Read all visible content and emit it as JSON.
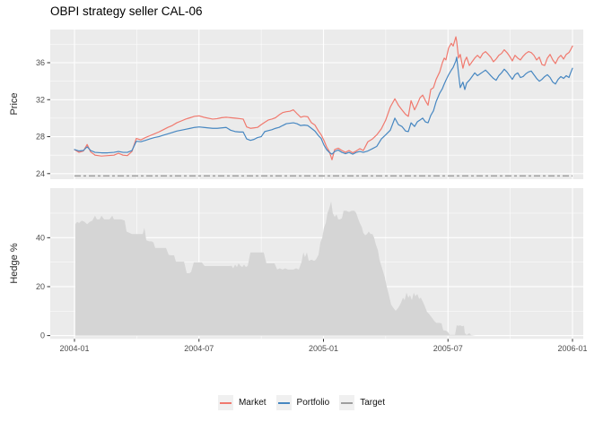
{
  "header": {
    "title": "OBPI strategy seller CAL-06"
  },
  "colors": {
    "market": "#F0796E",
    "portfolio": "#4787C1",
    "target": "#9E9E9E",
    "panel_bg": "#EBEBEB",
    "grid": "#FFFFFF",
    "hedge_fill": "#D5D5D5",
    "tick_text": "#4D4D4D",
    "axis_tick": "#333333"
  },
  "legend": {
    "items": [
      {
        "label": "Market",
        "color": "#F0796E"
      },
      {
        "label": "Portfolio",
        "color": "#4787C1"
      },
      {
        "label": "Target",
        "color": "#9E9E9E"
      }
    ]
  },
  "chart_data": {
    "type": "line",
    "title": "OBPI strategy seller CAL-06",
    "x_unit": "months since 2004-01",
    "grid": true,
    "legend_position": "bottom",
    "x_axis": {
      "ticks": [
        {
          "t": 0,
          "label": "2004-01"
        },
        {
          "t": 6,
          "label": "2004-07"
        },
        {
          "t": 12,
          "label": "2005-01"
        },
        {
          "t": 18,
          "label": "2005-07"
        },
        {
          "t": 24,
          "label": "2006-01"
        }
      ],
      "minor_ticks": [
        3,
        9,
        15,
        21
      ],
      "range": [
        -1.17,
        24.52
      ]
    },
    "panels": [
      {
        "name": "price",
        "ylabel": "Price",
        "type": "line",
        "ylim": [
          23.4,
          39.6
        ],
        "major_ticks": [
          {
            "v": 24,
            "label": "24"
          },
          {
            "v": 28,
            "label": "28"
          },
          {
            "v": 32,
            "label": "32"
          },
          {
            "v": 36,
            "label": "36"
          }
        ],
        "minor": [
          26,
          30,
          34,
          38
        ],
        "target_value": 23.75,
        "x": [
          0,
          0.22,
          0.43,
          0.61,
          0.78,
          0.99,
          1.3,
          1.6,
          1.9,
          2.12,
          2.34,
          2.55,
          2.77,
          2.98,
          3.2,
          3.42,
          3.63,
          3.85,
          4.06,
          4.28,
          4.5,
          4.71,
          4.93,
          5.15,
          5.36,
          5.58,
          5.79,
          6.01,
          6.23,
          6.44,
          6.66,
          6.88,
          7.09,
          7.31,
          7.52,
          7.74,
          7.96,
          8.13,
          8.3,
          8.48,
          8.65,
          8.82,
          9,
          9.17,
          9.34,
          9.51,
          9.69,
          9.86,
          10.03,
          10.21,
          10.38,
          10.55,
          10.72,
          10.9,
          11.07,
          11.24,
          11.42,
          11.59,
          11.76,
          11.89,
          12.02,
          12.15,
          12.28,
          12.41,
          12.54,
          12.71,
          12.89,
          13.06,
          13.23,
          13.41,
          13.58,
          13.75,
          13.92,
          14.14,
          14.36,
          14.57,
          14.79,
          15,
          15.22,
          15.44,
          15.61,
          15.78,
          15.96,
          16.09,
          16.22,
          16.39,
          16.52,
          16.65,
          16.78,
          16.91,
          17.04,
          17.17,
          17.3,
          17.43,
          17.6,
          17.73,
          17.82,
          17.9,
          18.03,
          18.16,
          18.25,
          18.38,
          18.42,
          18.51,
          18.59,
          18.72,
          18.81,
          18.9,
          19.03,
          19.16,
          19.29,
          19.42,
          19.55,
          19.68,
          19.81,
          19.94,
          20.06,
          20.19,
          20.32,
          20.45,
          20.58,
          20.71,
          20.84,
          20.97,
          21.1,
          21.23,
          21.36,
          21.49,
          21.62,
          21.75,
          21.88,
          22.01,
          22.14,
          22.27,
          22.4,
          22.53,
          22.66,
          22.79,
          22.92,
          23.05,
          23.18,
          23.31,
          23.44,
          23.57,
          23.7,
          23.83,
          23.91,
          24
        ],
        "series": [
          {
            "name": "Market",
            "values": [
              26.6,
              26.3,
              26.45,
              27.15,
              26.35,
              26.0,
              25.9,
              25.95,
              26.0,
              26.2,
              26.0,
              25.95,
              26.4,
              27.8,
              27.65,
              27.9,
              28.1,
              28.3,
              28.5,
              28.75,
              29.0,
              29.2,
              29.5,
              29.7,
              29.9,
              30.05,
              30.2,
              30.25,
              30.1,
              30.0,
              29.9,
              29.95,
              30.05,
              30.1,
              30.05,
              30.0,
              29.95,
              29.9,
              29.05,
              28.9,
              28.95,
              29.0,
              29.3,
              29.55,
              29.8,
              29.9,
              30.05,
              30.35,
              30.6,
              30.7,
              30.75,
              30.9,
              30.5,
              30.1,
              30.2,
              30.15,
              29.5,
              29.25,
              28.6,
              28.2,
              27.6,
              26.9,
              26.4,
              25.5,
              26.6,
              26.75,
              26.5,
              26.3,
              26.5,
              26.25,
              26.45,
              26.7,
              26.5,
              27.45,
              27.75,
              28.2,
              28.85,
              29.8,
              31.2,
              32.1,
              31.4,
              30.9,
              30.4,
              30.2,
              31.9,
              30.9,
              31.5,
              32.2,
              32.5,
              31.9,
              31.4,
              33.1,
              33.3,
              34.2,
              35.0,
              36.0,
              36.5,
              36.3,
              37.6,
              38.1,
              37.8,
              38.8,
              38.3,
              36.5,
              36.9,
              35.4,
              36.2,
              36.6,
              35.7,
              36.1,
              36.5,
              36.8,
              36.5,
              37.0,
              37.2,
              36.9,
              36.6,
              36.1,
              36.4,
              36.8,
              37.0,
              37.4,
              37.1,
              36.7,
              36.2,
              36.8,
              36.5,
              36.3,
              36.7,
              37.0,
              37.2,
              37.1,
              36.8,
              36.3,
              36.6,
              35.8,
              35.7,
              36.5,
              36.9,
              36.3,
              35.9,
              36.5,
              36.8,
              36.4,
              36.9,
              37.1,
              37.4,
              37.8
            ]
          },
          {
            "name": "Portfolio",
            "values": [
              26.6,
              26.45,
              26.5,
              26.9,
              26.5,
              26.3,
              26.25,
              26.25,
              26.3,
              26.4,
              26.3,
              26.3,
              26.5,
              27.5,
              27.45,
              27.6,
              27.75,
              27.9,
              28.0,
              28.15,
              28.3,
              28.45,
              28.6,
              28.7,
              28.8,
              28.9,
              29.0,
              29.05,
              29.0,
              28.95,
              28.9,
              28.9,
              28.95,
              29.0,
              28.7,
              28.55,
              28.5,
              28.5,
              27.75,
              27.6,
              27.7,
              27.9,
              28.0,
              28.55,
              28.65,
              28.75,
              28.9,
              29.0,
              29.2,
              29.4,
              29.45,
              29.5,
              29.4,
              29.2,
              29.25,
              29.2,
              28.9,
              28.6,
              28.1,
              27.8,
              27.1,
              26.6,
              26.3,
              26.1,
              26.4,
              26.55,
              26.3,
              26.15,
              26.3,
              26.1,
              26.3,
              26.4,
              26.3,
              26.45,
              26.7,
              26.95,
              27.75,
              28.2,
              28.7,
              30.0,
              29.3,
              29.1,
              28.6,
              28.55,
              29.5,
              29.1,
              29.6,
              29.8,
              30.0,
              29.6,
              29.5,
              30.3,
              30.8,
              31.8,
              32.7,
              33.2,
              33.7,
              34.1,
              34.7,
              35.2,
              35.5,
              36.2,
              36.6,
              34.8,
              33.3,
              33.9,
              33.1,
              33.8,
              34.1,
              34.5,
              34.9,
              34.6,
              34.8,
              35.0,
              35.2,
              34.9,
              34.6,
              34.3,
              34.1,
              34.6,
              34.9,
              35.3,
              35.0,
              34.6,
              34.2,
              34.7,
              34.9,
              34.4,
              34.5,
              34.8,
              35.0,
              35.1,
              34.7,
              34.3,
              34.0,
              34.2,
              34.5,
              34.7,
              34.4,
              33.9,
              33.7,
              34.2,
              34.5,
              34.3,
              34.6,
              34.4,
              34.9,
              35.4
            ]
          },
          {
            "name": "Target",
            "constant": 23.75
          }
        ]
      },
      {
        "name": "hedge",
        "ylabel": "Hedge %",
        "type": "area",
        "ylim": [
          -1.4,
          60.3
        ],
        "major_ticks": [
          {
            "v": 0,
            "label": "0"
          },
          {
            "v": 20,
            "label": "20"
          },
          {
            "v": 40,
            "label": "40"
          }
        ],
        "minor": [
          10,
          30,
          50
        ],
        "x": [
          0.04,
          0.13,
          0.22,
          0.35,
          0.48,
          0.61,
          0.74,
          0.86,
          0.99,
          1.08,
          1.21,
          1.3,
          1.43,
          1.56,
          1.69,
          1.82,
          1.9,
          2.08,
          2.25,
          2.42,
          2.51,
          2.64,
          2.77,
          2.9,
          3.03,
          3.16,
          3.29,
          3.37,
          3.46,
          3.59,
          3.72,
          3.81,
          3.89,
          4.02,
          4.15,
          4.28,
          4.41,
          4.54,
          4.67,
          4.8,
          4.89,
          5.02,
          5.15,
          5.28,
          5.41,
          5.54,
          5.62,
          5.75,
          5.88,
          6.01,
          6.14,
          6.27,
          6.4,
          6.53,
          6.66,
          6.79,
          6.92,
          7.05,
          7.18,
          7.31,
          7.44,
          7.57,
          7.65,
          7.74,
          7.83,
          7.91,
          8.0,
          8.09,
          8.17,
          8.26,
          8.35,
          8.48,
          8.61,
          8.74,
          8.86,
          9.0,
          9.12,
          9.25,
          9.38,
          9.51,
          9.64,
          9.77,
          9.9,
          10.03,
          10.16,
          10.29,
          10.42,
          10.55,
          10.68,
          10.81,
          10.94,
          11.03,
          11.11,
          11.2,
          11.29,
          11.42,
          11.55,
          11.63,
          11.76,
          11.85,
          11.94,
          12.02,
          12.11,
          12.19,
          12.28,
          12.37,
          12.45,
          12.54,
          12.63,
          12.71,
          12.8,
          12.89,
          12.97,
          13.1,
          13.23,
          13.36,
          13.49,
          13.58,
          13.66,
          13.75,
          13.84,
          13.92,
          14.01,
          14.1,
          14.18,
          14.27,
          14.36,
          14.44,
          14.53,
          14.62,
          14.7,
          14.79,
          14.88,
          14.96,
          15.05,
          15.14,
          15.26,
          15.35,
          15.48,
          15.57,
          15.65,
          15.74,
          15.83,
          15.91,
          16.0,
          16.09,
          16.17,
          16.26,
          16.35,
          16.43,
          16.52,
          16.61,
          16.69,
          16.78,
          16.86,
          16.99,
          17.12,
          17.21,
          17.34,
          17.43,
          17.56,
          17.69,
          17.77,
          17.9,
          17.99,
          18.08,
          18.21,
          18.34,
          18.42,
          18.51,
          18.59,
          18.68,
          18.77,
          18.81,
          18.9,
          19.03,
          19.11,
          19.33,
          19.76,
          20.63,
          21.49,
          22.36,
          23.22,
          24
        ],
        "series": [
          {
            "name": "Hedge %",
            "values": [
              45.5,
              46.5,
              46,
              47,
              46.5,
              45.5,
              46.5,
              47,
              49,
              47.5,
              47.5,
              49,
              47.5,
              47.5,
              47.5,
              49,
              47.5,
              47.5,
              47.5,
              47,
              42.5,
              42,
              41.5,
              41.5,
              41.5,
              41.5,
              41.5,
              44,
              39,
              38.5,
              38.5,
              38,
              35.8,
              35.8,
              35.8,
              35.8,
              35.8,
              33,
              32.8,
              32.8,
              30.2,
              30.2,
              30.2,
              30.2,
              25.5,
              25.5,
              26,
              29.9,
              29.9,
              29.9,
              29.9,
              28.4,
              28.4,
              28.4,
              28.4,
              28.4,
              28.4,
              28.4,
              28.4,
              28.4,
              28.4,
              28.5,
              27.5,
              29,
              28,
              29.5,
              28.5,
              28,
              29,
              28,
              28.5,
              34,
              34,
              34,
              34,
              34,
              34,
              29.5,
              29.5,
              29.5,
              29.5,
              27,
              27.5,
              27,
              27.5,
              27,
              27,
              27,
              27.5,
              27,
              30,
              34,
              32,
              34,
              30.5,
              31,
              30.5,
              31,
              33,
              38,
              40,
              44,
              46,
              50,
              52,
              54.8,
              50,
              48.5,
              49.5,
              47.5,
              47.5,
              48,
              51,
              51,
              50.5,
              51,
              51,
              50,
              48,
              46,
              44.5,
              42,
              41,
              41.5,
              42.5,
              41.5,
              41.5,
              40,
              37,
              35,
              31,
              28.5,
              26,
              23.7,
              20,
              17,
              12.7,
              11.5,
              10.1,
              11,
              12,
              13.5,
              15.5,
              14.5,
              17.5,
              15.5,
              16.5,
              14.5,
              17.5,
              16,
              17,
              15,
              15.5,
              14,
              12.5,
              9.7,
              8.5,
              7.5,
              6,
              5.2,
              5.2,
              5,
              2.2,
              2,
              1.5,
              0.3,
              0.3,
              0.3,
              4.2,
              4,
              4.2,
              3.8,
              4,
              1,
              0.2,
              1,
              0.2,
              0,
              0,
              0,
              0,
              0,
              0,
              0
            ]
          }
        ]
      }
    ]
  }
}
